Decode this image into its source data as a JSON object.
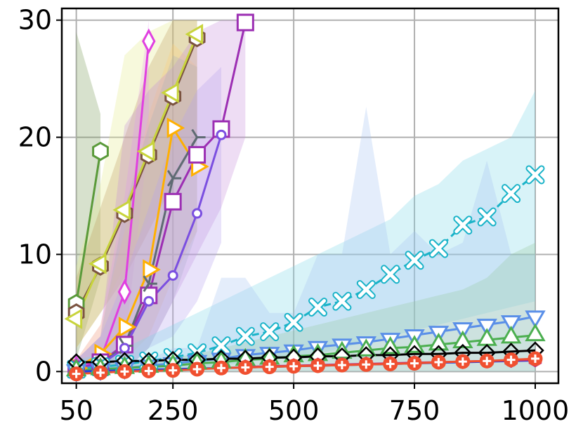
{
  "chart_data": {
    "type": "line",
    "title": "",
    "xlabel": "",
    "ylabel": "",
    "xlim": [
      20,
      1048
    ],
    "ylim": [
      -1,
      31
    ],
    "x_ticks": [
      50,
      250,
      500,
      750,
      1000
    ],
    "x_tick_labels": [
      "50",
      "250",
      "500",
      "750",
      "1000"
    ],
    "y_ticks": [
      0,
      10,
      20,
      30
    ],
    "y_tick_labels": [
      "0",
      "10",
      "20",
      "30"
    ],
    "grid": true,
    "legend": "none",
    "series": [
      {
        "color": "#5a9a3a",
        "marker": "hexagon",
        "dash": "",
        "x": [
          50,
          100
        ],
        "y": [
          5.8,
          18.8
        ],
        "band": {
          "x": [
            50,
            100
          ],
          "lo": [
            1,
            8
          ],
          "hi": [
            29,
            22
          ],
          "color": "#7a9a5a"
        }
      },
      {
        "color": "#7b5340",
        "marker": "hexagon",
        "dash": "",
        "x": [
          50,
          100,
          150,
          200,
          250,
          300
        ],
        "y": [
          5.0,
          9.0,
          13.5,
          18.5,
          23.5,
          28.5
        ],
        "band": {
          "x": [
            50,
            100,
            150,
            200,
            250,
            300
          ],
          "lo": [
            2,
            5,
            8,
            12,
            16,
            20
          ],
          "hi": [
            8,
            14,
            20,
            26,
            30,
            30
          ],
          "color": "#b07a50"
        }
      },
      {
        "color": "#c8d43c",
        "marker": "tri-left",
        "dash": "",
        "x": [
          50,
          100,
          150,
          200,
          250,
          300
        ],
        "y": [
          4.5,
          9.2,
          13.8,
          18.8,
          23.8,
          28.8
        ],
        "band": {
          "x": [
            50,
            100,
            150,
            200,
            250,
            300
          ],
          "lo": [
            2,
            5,
            9,
            13,
            17,
            21
          ],
          "hi": [
            9,
            16,
            27,
            29,
            30,
            30
          ],
          "color": "#e6ec8a"
        }
      },
      {
        "color": "#e040e0",
        "marker": "diamond",
        "dash": "",
        "x": [
          50,
          100,
          150,
          200
        ],
        "y": [
          0.3,
          1.0,
          6.8,
          28.2
        ],
        "band": {
          "x": [
            50,
            100,
            150,
            200
          ],
          "lo": [
            0,
            0,
            2,
            20
          ],
          "hi": [
            1,
            4,
            15,
            30
          ],
          "color": "#e9a3f2"
        }
      },
      {
        "color": "#ffb000",
        "marker": "tri-right",
        "dash": "",
        "x": [
          50,
          100,
          150,
          200,
          250,
          300
        ],
        "y": [
          0.3,
          1.5,
          3.8,
          8.7,
          20.8,
          17.5
        ],
        "band": {
          "x": [
            50,
            100,
            150,
            200,
            250,
            300
          ],
          "lo": [
            0,
            0,
            1,
            3,
            8,
            12
          ],
          "hi": [
            1,
            4,
            12,
            22,
            28,
            26
          ],
          "color": "#ffd07a"
        }
      },
      {
        "color": "#9c2fb3",
        "marker": "square",
        "dash": "",
        "x": [
          50,
          100,
          150,
          200,
          250,
          300,
          350,
          400
        ],
        "y": [
          0.2,
          0.8,
          2.3,
          6.5,
          14.5,
          18.5,
          20.7,
          29.8
        ],
        "band": {
          "x": [
            50,
            100,
            150,
            200,
            250,
            300,
            350,
            400
          ],
          "lo": [
            0,
            0,
            0,
            2,
            6,
            10,
            14,
            20
          ],
          "hi": [
            1,
            3,
            21,
            24,
            26,
            29,
            30,
            30
          ],
          "color": "#c890dc"
        }
      },
      {
        "color": "#5f6b73",
        "marker": "tri-right-line",
        "dash": "",
        "x": [
          50,
          100,
          150,
          200,
          250,
          300
        ],
        "y": [
          0.2,
          0.6,
          2.2,
          7.5,
          16.5,
          20.0
        ],
        "band": {
          "x": [
            50,
            100,
            150,
            200,
            250,
            300
          ],
          "lo": [
            0,
            0,
            0,
            2,
            6,
            12
          ],
          "hi": [
            1,
            3,
            14,
            21,
            27,
            26
          ],
          "color": "#a9b2ba"
        }
      },
      {
        "color": "#7b4fe0",
        "marker": "circle",
        "dash": "",
        "x": [
          50,
          100,
          150,
          200,
          250,
          300,
          350
        ],
        "y": [
          0.2,
          0.6,
          2.0,
          6.0,
          8.2,
          13.5,
          20.2
        ],
        "band": {
          "x": [
            50,
            100,
            150,
            200,
            250,
            300,
            350
          ],
          "lo": [
            0,
            0,
            0,
            2,
            3,
            6,
            11
          ],
          "hi": [
            1,
            3,
            8,
            14,
            20,
            24,
            26
          ],
          "color": "#b7a3f0"
        }
      },
      {
        "color": "#19b3c8",
        "marker": "x",
        "dash": "10,6",
        "x": [
          50,
          100,
          150,
          200,
          250,
          300,
          350,
          400,
          450,
          500,
          550,
          600,
          650,
          700,
          750,
          800,
          850,
          900,
          950,
          1000
        ],
        "y": [
          0.2,
          0.4,
          0.6,
          0.9,
          1.2,
          1.6,
          2.2,
          3.0,
          3.4,
          4.2,
          5.5,
          6.0,
          7.0,
          8.3,
          9.5,
          10.5,
          12.5,
          13.2,
          15.2,
          16.8
        ],
        "band": {
          "x": [
            50,
            100,
            150,
            200,
            250,
            300,
            350,
            400,
            450,
            500,
            550,
            600,
            650,
            700,
            750,
            800,
            850,
            900,
            950,
            1000
          ],
          "lo": [
            0,
            0,
            0,
            0,
            0,
            0.2,
            0.5,
            0.8,
            1.0,
            1.2,
            1.5,
            2.0,
            2.5,
            3.0,
            3.5,
            4.0,
            4.5,
            5.0,
            5.5,
            6.0
          ],
          "hi": [
            1,
            1.5,
            2,
            3,
            4,
            5,
            6,
            7,
            8,
            9,
            10,
            11,
            12,
            13,
            15,
            16,
            18,
            19,
            20,
            24
          ],
          "color": "#7ed8e8"
        }
      },
      {
        "color": "#5a8fe8",
        "marker": "tri-down",
        "dash": "",
        "x": [
          50,
          100,
          150,
          200,
          250,
          300,
          350,
          400,
          450,
          500,
          550,
          600,
          650,
          700,
          750,
          800,
          850,
          900,
          950,
          1000
        ],
        "y": [
          0.1,
          0.2,
          0.3,
          0.5,
          0.7,
          0.9,
          1.1,
          1.4,
          1.6,
          1.8,
          2.1,
          2.3,
          2.5,
          2.8,
          3.1,
          3.4,
          3.7,
          4.0,
          4.3,
          4.7
        ],
        "band": {
          "x": [
            50,
            100,
            150,
            200,
            250,
            300,
            350,
            400,
            450,
            500,
            550,
            600,
            650,
            700,
            750,
            800,
            850,
            900,
            950,
            1000
          ],
          "lo": [
            0,
            0,
            0,
            0,
            0,
            0,
            0,
            0,
            0,
            0,
            0,
            0,
            0,
            0,
            0,
            0,
            0,
            0,
            0,
            0
          ],
          "hi": [
            1,
            1,
            1,
            1,
            2,
            2,
            8,
            8,
            5,
            5,
            10,
            10,
            22.6,
            10,
            12,
            10,
            11,
            18,
            10,
            10
          ],
          "color": "#a6c4f2"
        }
      },
      {
        "color": "#4caf50",
        "marker": "tri-up",
        "dash": "",
        "x": [
          50,
          100,
          150,
          200,
          250,
          300,
          350,
          400,
          450,
          500,
          550,
          600,
          650,
          700,
          750,
          800,
          850,
          900,
          950,
          1000
        ],
        "y": [
          0.1,
          0.2,
          0.3,
          0.4,
          0.5,
          0.7,
          0.8,
          1.0,
          1.1,
          1.3,
          1.4,
          1.6,
          1.8,
          2.0,
          2.1,
          2.3,
          2.5,
          2.7,
          2.9,
          3.1
        ],
        "band": {
          "x": [
            50,
            100,
            150,
            200,
            250,
            300,
            350,
            400,
            450,
            500,
            550,
            600,
            650,
            700,
            750,
            800,
            850,
            900,
            950,
            1000
          ],
          "lo": [
            0,
            0,
            0,
            0,
            0,
            0,
            0,
            0,
            0,
            0,
            0,
            0,
            0,
            0,
            0,
            0,
            0,
            0,
            0,
            0
          ],
          "hi": [
            0.5,
            0.6,
            0.8,
            1,
            1.2,
            1.5,
            2,
            2.5,
            3,
            3.5,
            4,
            4.5,
            5,
            5.5,
            6,
            6.5,
            7,
            8,
            10,
            11
          ],
          "color": "#98c9a0"
        }
      },
      {
        "color": "#000000",
        "marker": "diamond-small",
        "dash": "",
        "x": [
          50,
          100,
          150,
          200,
          250,
          300,
          350,
          400,
          450,
          500,
          550,
          600,
          650,
          700,
          750,
          800,
          850,
          900,
          950,
          1000
        ],
        "y": [
          0.8,
          0.8,
          0.9,
          0.9,
          1.0,
          1.0,
          1.1,
          1.1,
          1.2,
          1.2,
          1.3,
          1.3,
          1.4,
          1.4,
          1.5,
          1.5,
          1.6,
          1.6,
          1.7,
          1.8
        ]
      },
      {
        "color": "#2040e0",
        "marker": "none",
        "dash": "",
        "x": [
          50,
          100,
          150,
          200,
          250,
          300,
          350,
          400,
          450,
          500,
          550,
          600,
          650,
          700,
          750,
          800,
          850,
          900,
          950,
          1000
        ],
        "y": [
          0.0,
          0.05,
          0.1,
          0.15,
          0.2,
          0.25,
          0.3,
          0.35,
          0.4,
          0.45,
          0.5,
          0.55,
          0.6,
          0.65,
          0.7,
          0.75,
          0.8,
          0.85,
          0.9,
          0.95
        ]
      },
      {
        "color": "#c0307a",
        "marker": "hexagon-small",
        "dash": "",
        "x": [
          400,
          450,
          500,
          550,
          600,
          650,
          700,
          750,
          800,
          850,
          900,
          950,
          1000
        ],
        "y": [
          0.4,
          0.45,
          0.5,
          0.55,
          0.6,
          0.65,
          0.7,
          0.75,
          0.8,
          0.85,
          0.9,
          0.95,
          1.0
        ]
      },
      {
        "color": "#f05030",
        "marker": "plus-circle",
        "dash": "",
        "x": [
          50,
          100,
          150,
          200,
          250,
          300,
          350,
          400,
          450,
          500,
          550,
          600,
          650,
          700,
          750,
          800,
          850,
          900,
          950,
          1000
        ],
        "y": [
          -0.2,
          -0.1,
          0.0,
          0.05,
          0.1,
          0.2,
          0.3,
          0.35,
          0.4,
          0.45,
          0.5,
          0.55,
          0.6,
          0.65,
          0.7,
          0.8,
          0.85,
          0.9,
          1.0,
          1.1
        ]
      }
    ]
  }
}
